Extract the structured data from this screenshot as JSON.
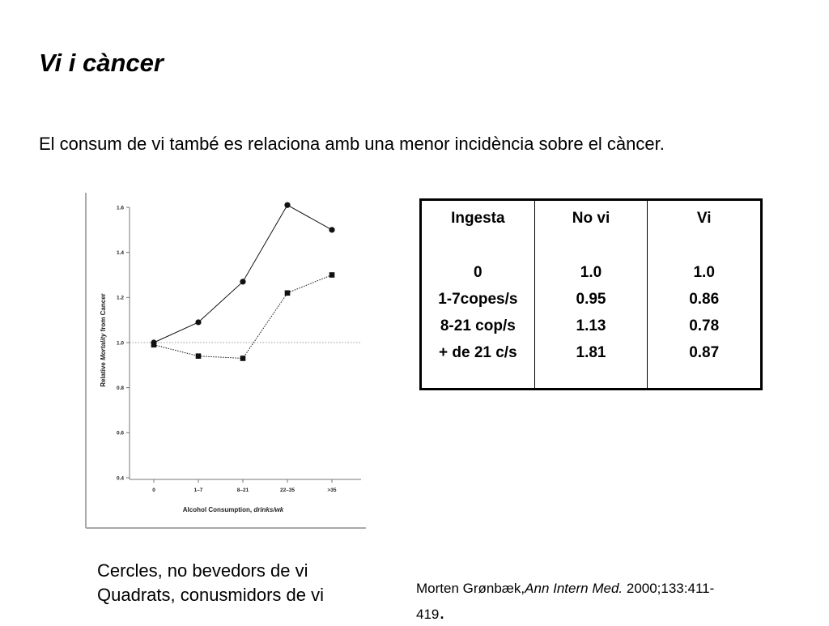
{
  "slide": {
    "title": "Vi i càncer",
    "subtitle": "El consum de vi també es relaciona amb una menor incidència sobre el càncer."
  },
  "table": {
    "columns": [
      {
        "header": "Ingesta",
        "cells": [
          "0",
          "1-7copes/s",
          "8-21 cop/s",
          "+ de 21 c/s"
        ]
      },
      {
        "header": "No vi",
        "cells": [
          "1.0",
          "0.95",
          "1.13",
          "1.81"
        ]
      },
      {
        "header": "Vi",
        "cells": [
          "1.0",
          "0.86",
          "0.78",
          "0.87"
        ]
      }
    ]
  },
  "legend_note": {
    "line1": "Cercles, no bevedors de vi",
    "line2": "Quadrats, conusmidors de vi"
  },
  "citation": {
    "author": "Morten Grønbæk,",
    "journal": "Ann Intern Med.",
    "ref": "2000;133:411-",
    "ref_end": "419",
    "end_period": "."
  },
  "chart_data": {
    "type": "line",
    "categories": [
      "0",
      "1–7",
      "8–21",
      "22–35",
      ">35"
    ],
    "series": [
      {
        "marker": "circle",
        "values": [
          1.0,
          1.09,
          1.27,
          1.61,
          1.5
        ]
      },
      {
        "marker": "square",
        "values": [
          0.99,
          0.94,
          0.93,
          1.22,
          1.3
        ]
      }
    ],
    "reference_line": 1.0,
    "xlabel_main": "Alcohol Consumption, ",
    "xlabel_unit": "drinks/wk",
    "ylabel_pre": "Relative ",
    "ylabel_italic": "Mortality",
    "ylabel_post": " from Cancer",
    "ylim": [
      0.4,
      1.6
    ],
    "yticks": [
      "0.4",
      "0.6",
      "0.8",
      "1.0",
      "1.2",
      "1.4",
      "1.6"
    ],
    "grid": false,
    "colors": {
      "line": "#111111",
      "reference": "#777777"
    }
  }
}
